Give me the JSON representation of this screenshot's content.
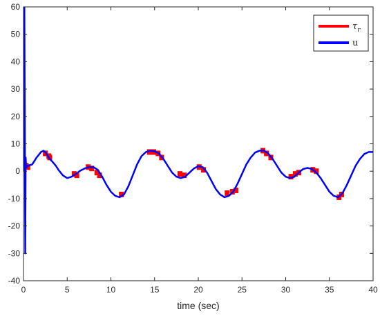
{
  "chart_data": {
    "type": "line",
    "title": "",
    "xlabel": "time (sec)",
    "ylabel": "",
    "xlim": [
      0,
      40
    ],
    "ylim": [
      -40,
      60
    ],
    "xticks": [
      0,
      5,
      10,
      15,
      20,
      25,
      30,
      35,
      40
    ],
    "yticks": [
      -40,
      -30,
      -20,
      -10,
      0,
      10,
      20,
      30,
      40,
      50,
      60
    ],
    "grid": false,
    "legend_position": "top-right",
    "series": [
      {
        "name": "τr",
        "legend_main": "τ",
        "legend_sub": "r",
        "color": "#ff0000",
        "x": [
          0.3,
          0.5,
          2.5,
          2.9,
          3.0,
          5.8,
          6.1,
          7.4,
          7.8,
          8.4,
          8.7,
          11.2,
          14.4,
          14.9,
          15.4,
          15.8,
          17.9,
          18.4,
          20.1,
          20.6,
          23.3,
          23.9,
          24.3,
          27.4,
          27.8,
          28.3,
          30.6,
          31.1,
          31.5,
          33.1,
          33.5,
          36.1,
          36.4
        ],
        "y": [
          2.0,
          1.5,
          6.5,
          5.5,
          5.0,
          -1.0,
          -1.5,
          1.5,
          1.0,
          -0.5,
          -1.5,
          -8.5,
          7.0,
          7.0,
          6.5,
          5.0,
          -1.0,
          -1.5,
          1.5,
          0.5,
          -8.0,
          -7.5,
          -7.0,
          7.5,
          6.5,
          5.0,
          -2.0,
          -1.0,
          -0.5,
          0.5,
          0.0,
          -9.5,
          -8.5
        ]
      },
      {
        "name": "u",
        "color": "#0000ff",
        "x": [
          0,
          0.1,
          0.15,
          0.2,
          0.25,
          0.3,
          0.35,
          0.5,
          1.0,
          1.5,
          2.0,
          2.3,
          2.5,
          2.7,
          2.9,
          3.0,
          3.3,
          3.7,
          4.0,
          4.5,
          5.0,
          5.5,
          6.0,
          6.5,
          7.0,
          7.5,
          8.0,
          8.5,
          9.0,
          9.5,
          10.0,
          10.5,
          11.0,
          11.5,
          12.0,
          12.5,
          13.0,
          13.5,
          14.0,
          14.5,
          15.0,
          15.5,
          16.0,
          16.5,
          17.0,
          17.5,
          18.0,
          18.5,
          19.0,
          19.5,
          20.0,
          20.5,
          21.0,
          21.5,
          22.0,
          22.5,
          23.0,
          23.5,
          24.0,
          24.5,
          25.0,
          25.5,
          26.0,
          26.5,
          27.0,
          27.5,
          28.0,
          28.5,
          29.0,
          29.5,
          30.0,
          30.5,
          31.0,
          31.5,
          32.0,
          32.5,
          33.0,
          33.5,
          34.0,
          34.5,
          35.0,
          35.5,
          36.0,
          36.5,
          37.0,
          37.5,
          38.0,
          38.5,
          39.0,
          39.5,
          40.0
        ],
        "y": [
          0,
          60,
          20,
          -30,
          5,
          2,
          1.5,
          2.0,
          2.5,
          5.0,
          7.0,
          7.5,
          7.0,
          6.0,
          5.0,
          4.5,
          3.5,
          2.0,
          0.5,
          -1.5,
          -2.5,
          -2.0,
          -1.0,
          0.2,
          1.0,
          1.5,
          1.5,
          0.5,
          -2.0,
          -5.0,
          -7.5,
          -9.0,
          -9.5,
          -8.5,
          -5.5,
          -1.5,
          2.5,
          5.5,
          7.0,
          7.5,
          7.3,
          6.5,
          4.5,
          2.0,
          -0.5,
          -2.0,
          -2.5,
          -2.0,
          -0.5,
          1.0,
          1.8,
          1.5,
          -0.5,
          -3.5,
          -6.5,
          -8.5,
          -9.5,
          -9.0,
          -7.5,
          -4.5,
          -1.0,
          2.5,
          5.0,
          6.8,
          7.5,
          7.5,
          6.5,
          4.5,
          2.0,
          -0.5,
          -2.0,
          -2.5,
          -2.0,
          -0.5,
          0.8,
          1.2,
          0.8,
          -0.5,
          -2.5,
          -5.0,
          -7.5,
          -9.0,
          -9.5,
          -8.0,
          -5.0,
          -1.5,
          2.0,
          4.5,
          6.3,
          7.0,
          7.0
        ]
      }
    ]
  }
}
